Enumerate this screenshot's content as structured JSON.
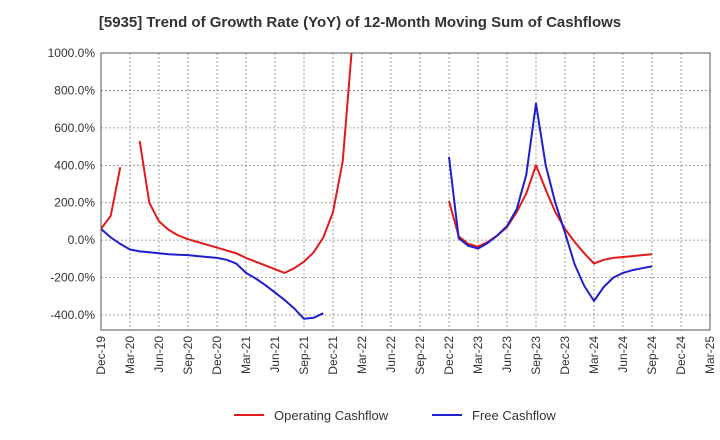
{
  "chart_data": {
    "type": "line",
    "title": "[5935]  Trend of Growth Rate (YoY) of 12-Month Moving Sum of Cashflows",
    "xlabel": "",
    "ylabel": "",
    "ylim": [
      -480,
      1000
    ],
    "y_ticks": [
      -400,
      -200,
      0,
      200,
      400,
      600,
      800,
      1000
    ],
    "y_tick_labels": [
      "-400.0%",
      "-200.0%",
      "0.0%",
      "200.0%",
      "400.0%",
      "600.0%",
      "800.0%",
      "1000.0%"
    ],
    "x_range": [
      "2019-12",
      "2025-03"
    ],
    "x_tick_labels": [
      "Dec-19",
      "Mar-20",
      "Jun-20",
      "Sep-20",
      "Dec-20",
      "Mar-21",
      "Jun-21",
      "Sep-21",
      "Dec-21",
      "Mar-22",
      "Jun-22",
      "Sep-22",
      "Dec-22",
      "Mar-23",
      "Jun-23",
      "Sep-23",
      "Dec-23",
      "Mar-24",
      "Jun-24",
      "Sep-24",
      "Dec-24",
      "Mar-25"
    ],
    "grid": true,
    "legend_position": "bottom",
    "series": [
      {
        "name": "Operating Cashflow",
        "color": "#e31a1c",
        "values": [
          [
            60,
            130,
            390,
            null,
            530,
            200,
            100,
            55,
            25,
            5,
            -10,
            -25,
            -40,
            -55,
            -70,
            -95,
            -115,
            -135,
            -155,
            -175,
            -150,
            -115,
            -65,
            15,
            150,
            420,
            1050,
            null,
            null,
            null,
            null,
            null,
            null,
            null,
            null,
            null,
            210,
            20,
            -20,
            -35,
            -10,
            25,
            70,
            150,
            250,
            400,
            270,
            150,
            60,
            -10,
            -70,
            -125,
            -105,
            -95,
            -90,
            -85,
            -80,
            -75
          ]
        ]
      },
      {
        "name": "Free Cashflow",
        "color": "#1f1fcc",
        "values": [
          [
            60,
            15,
            -20,
            -50,
            -60,
            -65,
            -70,
            -75,
            -78,
            -80,
            -85,
            -90,
            -95,
            -105,
            -125,
            -175,
            -205,
            -240,
            -280,
            -320,
            -365,
            -420,
            -415,
            -390,
            null,
            null,
            null,
            null,
            null,
            null,
            null,
            null,
            null,
            null,
            null,
            null,
            445,
            10,
            -30,
            -45,
            -15,
            25,
            75,
            165,
            350,
            730,
            400,
            200,
            40,
            -130,
            -245,
            -325,
            -250,
            -200,
            -175,
            -160,
            -150,
            -140
          ]
        ]
      }
    ]
  }
}
